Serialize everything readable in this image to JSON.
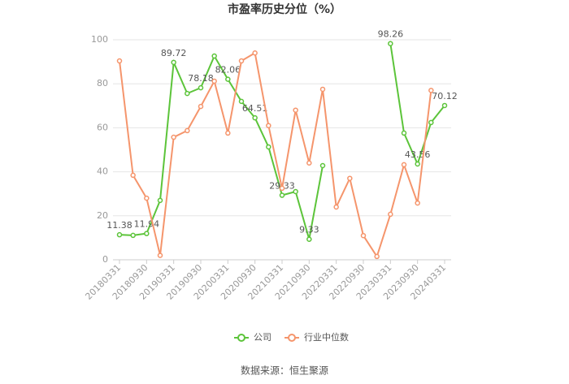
{
  "chart_data": {
    "type": "line",
    "title": "市盈率历史分位（%）",
    "categories": [
      "20180331",
      null,
      "20180930",
      null,
      "20190331",
      null,
      "20190930",
      null,
      "20200331",
      null,
      "20200930",
      null,
      "20210331",
      null,
      "20210930",
      null,
      "20220331",
      null,
      "20220930",
      null,
      "20230331",
      null,
      "20230930",
      null,
      "20240331"
    ],
    "series": [
      {
        "name": "公司",
        "color": "#5cc43a",
        "values": [
          11.38,
          11.1,
          11.94,
          27,
          89.72,
          75.6,
          78.18,
          92.6,
          82.06,
          72,
          64.51,
          51.3,
          29.33,
          31,
          9.33,
          42.8,
          null,
          null,
          null,
          null,
          98.26,
          57.6,
          43.56,
          62.4,
          70.12
        ],
        "value_labels": [
          "11.38",
          null,
          "11.94",
          null,
          "89.72",
          null,
          "78.18",
          null,
          "82.06",
          null,
          "64.51",
          null,
          "29.33",
          null,
          "9.33",
          null,
          null,
          null,
          null,
          null,
          "98.26",
          null,
          "43.56",
          null,
          "70.12"
        ]
      },
      {
        "name": "行业中位数",
        "color": "#f5956c",
        "values": [
          90.4,
          38.4,
          28,
          2,
          55.7,
          58.7,
          69.7,
          81.2,
          57.6,
          90.4,
          94,
          61,
          32.5,
          68,
          44,
          77.5,
          24,
          37,
          11,
          1.5,
          20.7,
          43.2,
          25.8,
          77,
          null
        ]
      }
    ],
    "ylim": [
      0,
      100
    ],
    "yticks": [
      0,
      20,
      40,
      60,
      80,
      100
    ],
    "grid": true,
    "legend": "bottom",
    "source": "数据来源：恒生聚源"
  }
}
